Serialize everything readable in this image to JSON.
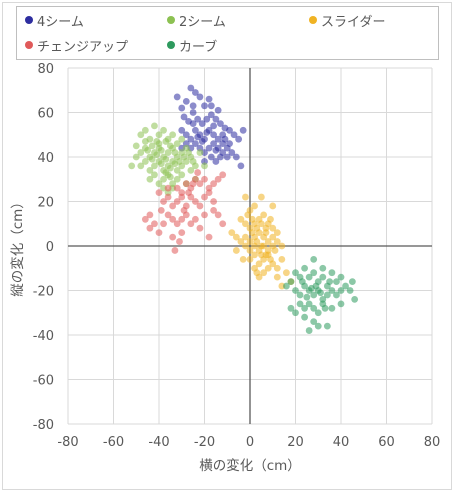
{
  "chart_data": {
    "type": "scatter",
    "xlabel": "横の変化（cm）",
    "ylabel": "縦の変化（cm）",
    "xlim": [
      -80,
      80
    ],
    "ylim": [
      -80,
      80
    ],
    "xticks": [
      -80,
      -60,
      -40,
      -20,
      0,
      20,
      40,
      60,
      80
    ],
    "yticks": [
      -80,
      -60,
      -40,
      -20,
      0,
      20,
      40,
      60,
      80
    ],
    "grid": true,
    "legend_position": "top",
    "series": [
      {
        "name": "4シーム",
        "color": "#2e2ea0",
        "points": [
          [
            -32,
            67
          ],
          [
            -30,
            62
          ],
          [
            -28,
            65
          ],
          [
            -26,
            71
          ],
          [
            -24,
            69
          ],
          [
            -22,
            67
          ],
          [
            -25,
            60
          ],
          [
            -20,
            63
          ],
          [
            -18,
            66
          ],
          [
            -29,
            58
          ],
          [
            -27,
            56
          ],
          [
            -25,
            55
          ],
          [
            -23,
            57
          ],
          [
            -21,
            55
          ],
          [
            -19,
            57
          ],
          [
            -17,
            59
          ],
          [
            -15,
            57
          ],
          [
            -13,
            55
          ],
          [
            -11,
            53
          ],
          [
            -9,
            52
          ],
          [
            -7,
            50
          ],
          [
            -5,
            48
          ],
          [
            -3,
            52
          ],
          [
            -30,
            52
          ],
          [
            -28,
            50
          ],
          [
            -26,
            48
          ],
          [
            -24,
            52
          ],
          [
            -22,
            50
          ],
          [
            -20,
            48
          ],
          [
            -18,
            52
          ],
          [
            -16,
            50
          ],
          [
            -14,
            48
          ],
          [
            -12,
            46
          ],
          [
            -10,
            44
          ],
          [
            -8,
            42
          ],
          [
            -6,
            40
          ],
          [
            -24,
            46
          ],
          [
            -22,
            44
          ],
          [
            -20,
            42
          ],
          [
            -18,
            44
          ],
          [
            -16,
            46
          ],
          [
            -14,
            44
          ],
          [
            -12,
            42
          ],
          [
            -10,
            40
          ],
          [
            -20,
            38
          ],
          [
            -17,
            40
          ],
          [
            -15,
            38
          ],
          [
            -13,
            40
          ],
          [
            -26,
            44
          ],
          [
            -28,
            46
          ],
          [
            -30,
            44
          ],
          [
            -4,
            36
          ],
          [
            -16,
            54
          ],
          [
            -12,
            50
          ],
          [
            -19,
            51
          ],
          [
            -21,
            47
          ],
          [
            -15,
            43
          ],
          [
            -23,
            49
          ],
          [
            -11,
            48
          ],
          [
            -9,
            46
          ],
          [
            -25,
            63
          ],
          [
            -17,
            63
          ],
          [
            -14,
            61
          ]
        ]
      },
      {
        "name": "2シーム",
        "color": "#8cc152",
        "points": [
          [
            -50,
            45
          ],
          [
            -48,
            50
          ],
          [
            -46,
            52
          ],
          [
            -44,
            48
          ],
          [
            -42,
            54
          ],
          [
            -40,
            50
          ],
          [
            -38,
            52
          ],
          [
            -36,
            48
          ],
          [
            -34,
            50
          ],
          [
            -32,
            46
          ],
          [
            -30,
            48
          ],
          [
            -50,
            40
          ],
          [
            -48,
            42
          ],
          [
            -46,
            44
          ],
          [
            -44,
            40
          ],
          [
            -42,
            42
          ],
          [
            -40,
            44
          ],
          [
            -38,
            40
          ],
          [
            -36,
            42
          ],
          [
            -34,
            44
          ],
          [
            -32,
            40
          ],
          [
            -30,
            42
          ],
          [
            -28,
            44
          ],
          [
            -26,
            40
          ],
          [
            -48,
            36
          ],
          [
            -46,
            38
          ],
          [
            -44,
            34
          ],
          [
            -42,
            36
          ],
          [
            -40,
            38
          ],
          [
            -38,
            34
          ],
          [
            -36,
            36
          ],
          [
            -34,
            38
          ],
          [
            -32,
            34
          ],
          [
            -30,
            36
          ],
          [
            -28,
            38
          ],
          [
            -26,
            34
          ],
          [
            -24,
            36
          ],
          [
            -44,
            30
          ],
          [
            -42,
            32
          ],
          [
            -40,
            28
          ],
          [
            -38,
            30
          ],
          [
            -36,
            32
          ],
          [
            -34,
            28
          ],
          [
            -32,
            30
          ],
          [
            -30,
            32
          ],
          [
            -28,
            28
          ],
          [
            -38,
            26
          ],
          [
            -36,
            24
          ],
          [
            -34,
            26
          ],
          [
            -40,
            46
          ],
          [
            -37,
            47
          ],
          [
            -35,
            45
          ],
          [
            -33,
            42
          ],
          [
            -31,
            38
          ],
          [
            -29,
            40
          ],
          [
            -27,
            42
          ],
          [
            -25,
            38
          ],
          [
            -22,
            42
          ],
          [
            -20,
            36
          ],
          [
            -46,
            47
          ],
          [
            -43,
            45
          ],
          [
            -41,
            41
          ],
          [
            -39,
            37
          ],
          [
            -37,
            39
          ],
          [
            -35,
            35
          ],
          [
            -33,
            37
          ],
          [
            -43,
            39
          ],
          [
            -45,
            43
          ],
          [
            -41,
            47
          ],
          [
            -39,
            43
          ],
          [
            -37,
            33
          ],
          [
            -35,
            31
          ],
          [
            -52,
            36
          ],
          [
            -24,
            30
          ]
        ]
      },
      {
        "name": "スライダー",
        "color": "#f0b323",
        "points": [
          [
            -2,
            22
          ],
          [
            0,
            16
          ],
          [
            2,
            18
          ],
          [
            -4,
            12
          ],
          [
            -2,
            10
          ],
          [
            0,
            8
          ],
          [
            2,
            10
          ],
          [
            4,
            12
          ],
          [
            6,
            14
          ],
          [
            8,
            10
          ],
          [
            10,
            8
          ],
          [
            12,
            6
          ],
          [
            -6,
            4
          ],
          [
            -4,
            2
          ],
          [
            -2,
            4
          ],
          [
            0,
            2
          ],
          [
            2,
            4
          ],
          [
            4,
            6
          ],
          [
            6,
            4
          ],
          [
            8,
            2
          ],
          [
            10,
            4
          ],
          [
            12,
            2
          ],
          [
            -2,
            0
          ],
          [
            0,
            -2
          ],
          [
            2,
            0
          ],
          [
            4,
            -2
          ],
          [
            6,
            0
          ],
          [
            8,
            -2
          ],
          [
            10,
            0
          ],
          [
            14,
            0
          ],
          [
            0,
            -6
          ],
          [
            2,
            -4
          ],
          [
            4,
            -8
          ],
          [
            6,
            -6
          ],
          [
            8,
            -4
          ],
          [
            10,
            -8
          ],
          [
            12,
            -10
          ],
          [
            4,
            -14
          ],
          [
            6,
            -12
          ],
          [
            8,
            -10
          ],
          [
            14,
            -6
          ],
          [
            16,
            -12
          ],
          [
            2,
            -10
          ],
          [
            -8,
            6
          ],
          [
            -6,
            -2
          ],
          [
            18,
            -16
          ],
          [
            3,
            8
          ],
          [
            5,
            10
          ],
          [
            7,
            6
          ],
          [
            9,
            12
          ],
          [
            1,
            6
          ],
          [
            3,
            2
          ],
          [
            5,
            0
          ],
          [
            7,
            -4
          ],
          [
            9,
            -6
          ],
          [
            11,
            -2
          ],
          [
            3,
            -12
          ],
          [
            5,
            -4
          ],
          [
            7,
            8
          ],
          [
            1,
            12
          ],
          [
            -1,
            14
          ],
          [
            12,
            -14
          ],
          [
            14,
            -18
          ],
          [
            -3,
            -6
          ],
          [
            5,
            22
          ],
          [
            10,
            18
          ]
        ]
      },
      {
        "name": "チェンジアップ",
        "color": "#e05a5a",
        "points": [
          [
            -46,
            12
          ],
          [
            -44,
            8
          ],
          [
            -42,
            10
          ],
          [
            -40,
            6
          ],
          [
            -38,
            10
          ],
          [
            -36,
            14
          ],
          [
            -34,
            12
          ],
          [
            -32,
            10
          ],
          [
            -30,
            12
          ],
          [
            -28,
            14
          ],
          [
            -26,
            10
          ],
          [
            -24,
            12
          ],
          [
            -38,
            20
          ],
          [
            -36,
            22
          ],
          [
            -34,
            18
          ],
          [
            -32,
            20
          ],
          [
            -30,
            22
          ],
          [
            -28,
            18
          ],
          [
            -26,
            22
          ],
          [
            -24,
            20
          ],
          [
            -22,
            18
          ],
          [
            -20,
            22
          ],
          [
            -18,
            24
          ],
          [
            -16,
            20
          ],
          [
            -32,
            26
          ],
          [
            -30,
            24
          ],
          [
            -28,
            28
          ],
          [
            -26,
            26
          ],
          [
            -24,
            30
          ],
          [
            -22,
            28
          ],
          [
            -20,
            30
          ],
          [
            -18,
            26
          ],
          [
            -16,
            28
          ],
          [
            -14,
            30
          ],
          [
            -12,
            32
          ],
          [
            -40,
            24
          ],
          [
            -36,
            26
          ],
          [
            -44,
            14
          ],
          [
            -30,
            6
          ],
          [
            -18,
            4
          ],
          [
            -20,
            14
          ],
          [
            -14,
            14
          ],
          [
            -12,
            10
          ],
          [
            -16,
            16
          ],
          [
            -22,
            8
          ],
          [
            -34,
            4
          ],
          [
            -27,
            24
          ],
          [
            -25,
            28
          ],
          [
            -23,
            33
          ],
          [
            -29,
            16
          ],
          [
            -31,
            2
          ],
          [
            -39,
            16
          ],
          [
            -33,
            -2
          ]
        ]
      },
      {
        "name": "カーブ",
        "color": "#2e9a5e",
        "points": [
          [
            18,
            -16
          ],
          [
            20,
            -12
          ],
          [
            22,
            -14
          ],
          [
            24,
            -10
          ],
          [
            26,
            -14
          ],
          [
            28,
            -12
          ],
          [
            30,
            -16
          ],
          [
            32,
            -14
          ],
          [
            34,
            -18
          ],
          [
            36,
            -12
          ],
          [
            38,
            -16
          ],
          [
            40,
            -14
          ],
          [
            20,
            -20
          ],
          [
            22,
            -22
          ],
          [
            24,
            -18
          ],
          [
            26,
            -20
          ],
          [
            28,
            -22
          ],
          [
            30,
            -20
          ],
          [
            32,
            -24
          ],
          [
            34,
            -22
          ],
          [
            36,
            -20
          ],
          [
            38,
            -22
          ],
          [
            22,
            -26
          ],
          [
            24,
            -28
          ],
          [
            26,
            -26
          ],
          [
            28,
            -28
          ],
          [
            30,
            -30
          ],
          [
            32,
            -26
          ],
          [
            20,
            -30
          ],
          [
            24,
            -32
          ],
          [
            28,
            -34
          ],
          [
            30,
            -36
          ],
          [
            34,
            -36
          ],
          [
            26,
            -38
          ],
          [
            18,
            -28
          ],
          [
            40,
            -26
          ],
          [
            44,
            -20
          ],
          [
            46,
            -24
          ],
          [
            42,
            -18
          ],
          [
            36,
            -28
          ],
          [
            16,
            -18
          ],
          [
            29,
            -18
          ],
          [
            31,
            -21
          ],
          [
            27,
            -19
          ],
          [
            25,
            -23
          ],
          [
            35,
            -16
          ],
          [
            45,
            -16
          ],
          [
            40,
            -20
          ],
          [
            23,
            -16
          ],
          [
            33,
            -28
          ],
          [
            28,
            -6
          ],
          [
            32,
            -10
          ]
        ]
      }
    ]
  }
}
